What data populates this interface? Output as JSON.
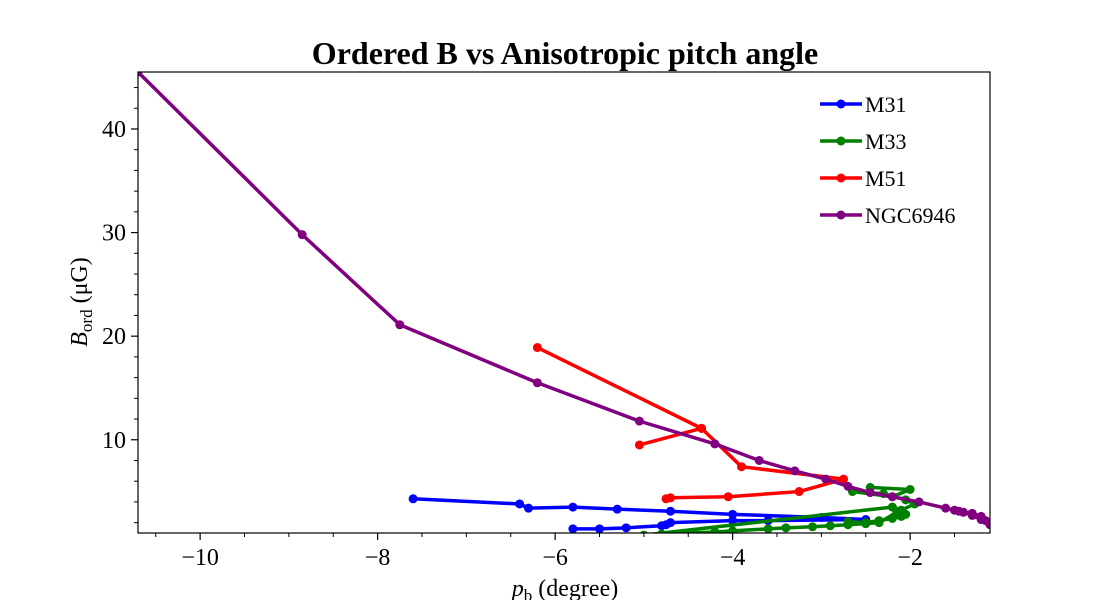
{
  "chart_data": {
    "type": "line",
    "title": "Ordered B vs Anisotropic pitch angle",
    "xlabel": {
      "main": "p",
      "sub": "b",
      "rest": " (degree)"
    },
    "ylabel": {
      "main": "B",
      "sub": "ord",
      "rest": " (μG)"
    },
    "xlim": [
      -10.7,
      -1.1
    ],
    "ylim": [
      1,
      45.5
    ],
    "xticks": [
      -10,
      -8,
      -6,
      -4,
      -2
    ],
    "xtick_labels": [
      "−10",
      "−8",
      "−6",
      "−4",
      "−2"
    ],
    "yticks": [
      10,
      20,
      30,
      40
    ],
    "ytick_labels": [
      "10",
      "20",
      "30",
      "40"
    ],
    "legend_position": "top-right",
    "series": [
      {
        "name": "M31",
        "color": "#0000ff",
        "x": [
          -7.6,
          -6.4,
          -6.3,
          -5.8,
          -5.3,
          -4.7,
          -4.0,
          -3.0,
          -2.5,
          -3.6,
          -4.0,
          -4.7,
          -4.75,
          -4.8,
          -5.2,
          -5.5,
          -5.8
        ],
        "y": [
          4.3,
          3.8,
          3.4,
          3.5,
          3.3,
          3.1,
          2.8,
          2.5,
          2.3,
          2.2,
          2.2,
          2.0,
          1.8,
          1.7,
          1.5,
          1.4,
          1.4
        ]
      },
      {
        "name": "M33",
        "color": "#008000",
        "x": [
          -2.45,
          -2.0,
          -2.2,
          -2.65,
          -2.3,
          -2.05,
          -1.95,
          -2.15,
          -2.35,
          -2.5,
          -2.7,
          -2.9,
          -3.1,
          -3.4,
          -3.6,
          -4.0,
          -4.2,
          -4.5,
          -4.8,
          -5.0,
          -2.2,
          -2.1,
          -2.05,
          -2.1,
          -2.2,
          -2.35,
          -2.5,
          -2.7
        ],
        "y": [
          5.4,
          5.2,
          4.5,
          5.0,
          4.8,
          4.2,
          3.8,
          3.0,
          2.0,
          1.9,
          1.8,
          1.7,
          1.6,
          1.5,
          1.4,
          1.2,
          1.1,
          1.0,
          0.9,
          0.8,
          3.5,
          3.2,
          2.8,
          2.6,
          2.4,
          2.2,
          2.0,
          2.1
        ]
      },
      {
        "name": "M51",
        "color": "#ff0000",
        "x": [
          -6.2,
          -4.35,
          -5.05,
          -4.35,
          -3.9,
          -2.75,
          -3.25,
          -4.05,
          -4.7,
          -4.75
        ],
        "y": [
          18.9,
          11.1,
          9.5,
          11.1,
          7.4,
          6.2,
          5.0,
          4.5,
          4.4,
          4.3
        ]
      },
      {
        "name": "NGC6946",
        "color": "#800080",
        "x": [
          -10.7,
          -8.85,
          -7.75,
          -6.2,
          -5.05,
          -4.2,
          -3.7,
          -3.3,
          -2.95,
          -2.7,
          -2.45,
          -2.2,
          -1.9,
          -1.6,
          -1.45,
          -1.3,
          -1.2,
          -1.15,
          -1.1,
          -1.2,
          -1.3,
          -1.4,
          -1.5
        ],
        "y": [
          45.5,
          29.8,
          21.1,
          15.5,
          11.8,
          9.6,
          8.0,
          7.0,
          6.2,
          5.5,
          4.9,
          4.5,
          4.0,
          3.4,
          3.1,
          2.9,
          2.6,
          2.2,
          1.8,
          2.3,
          2.7,
          3.0,
          3.2
        ]
      }
    ]
  }
}
